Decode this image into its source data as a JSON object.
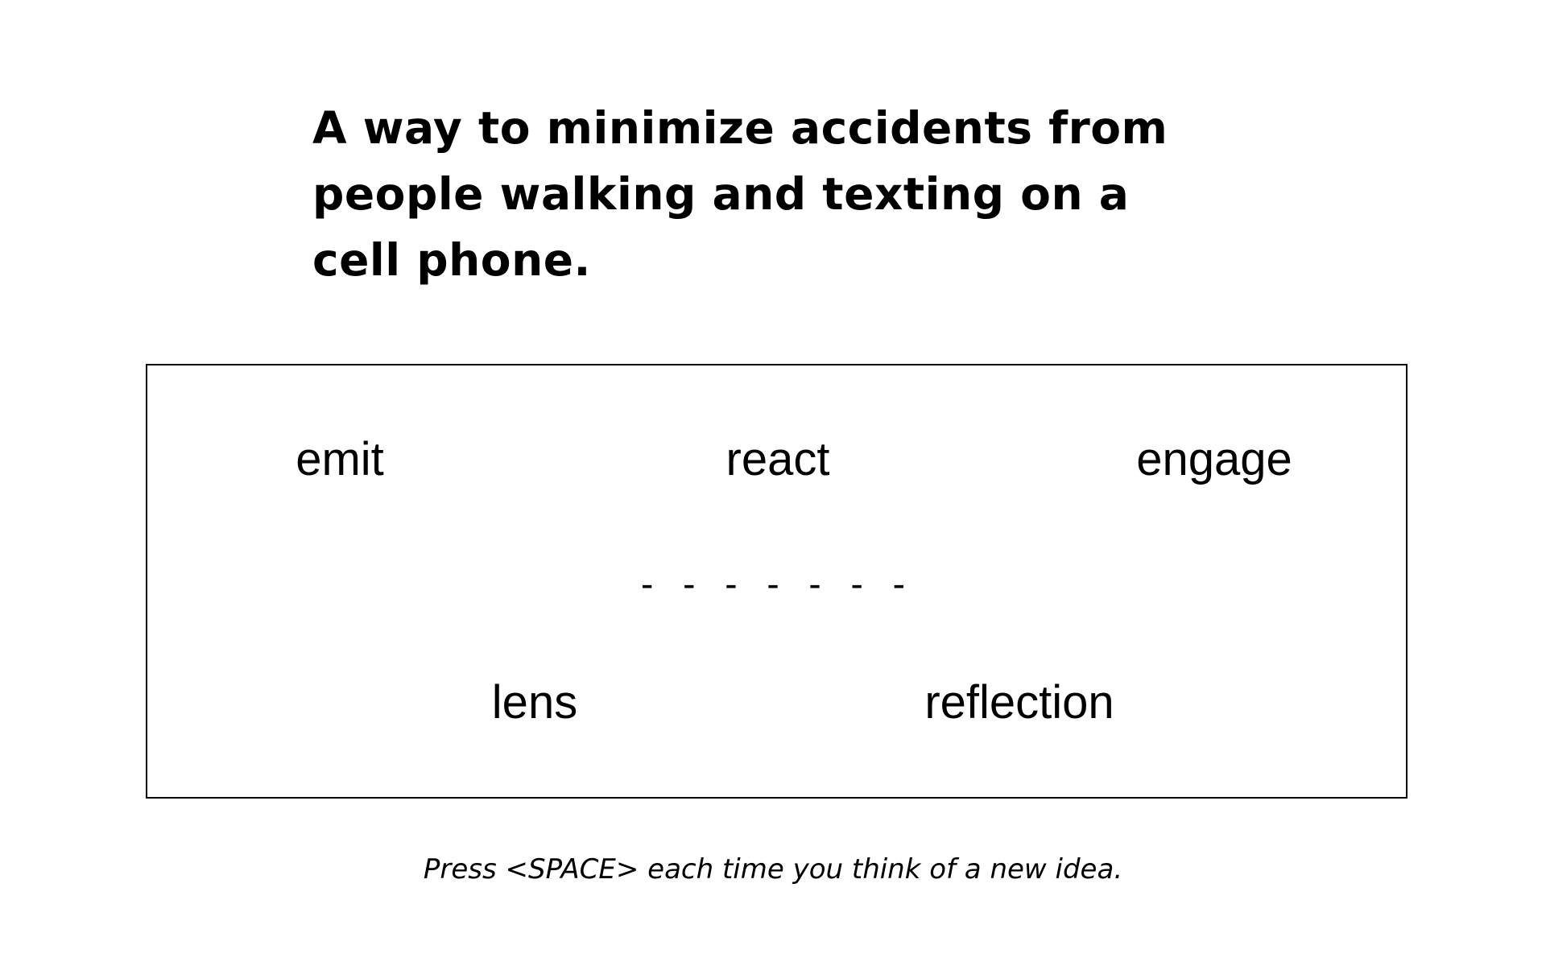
{
  "prompt": {
    "text": "A way to minimize accidents from people walking and texting on a cell phone."
  },
  "word_panel": {
    "words_top": [
      "emit",
      "react",
      "engage"
    ],
    "words_bottom": [
      "lens",
      "reflection"
    ],
    "blanks": "- - - - - - -"
  },
  "instruction": {
    "text": "Press <SPACE> each time you think of a new idea."
  }
}
